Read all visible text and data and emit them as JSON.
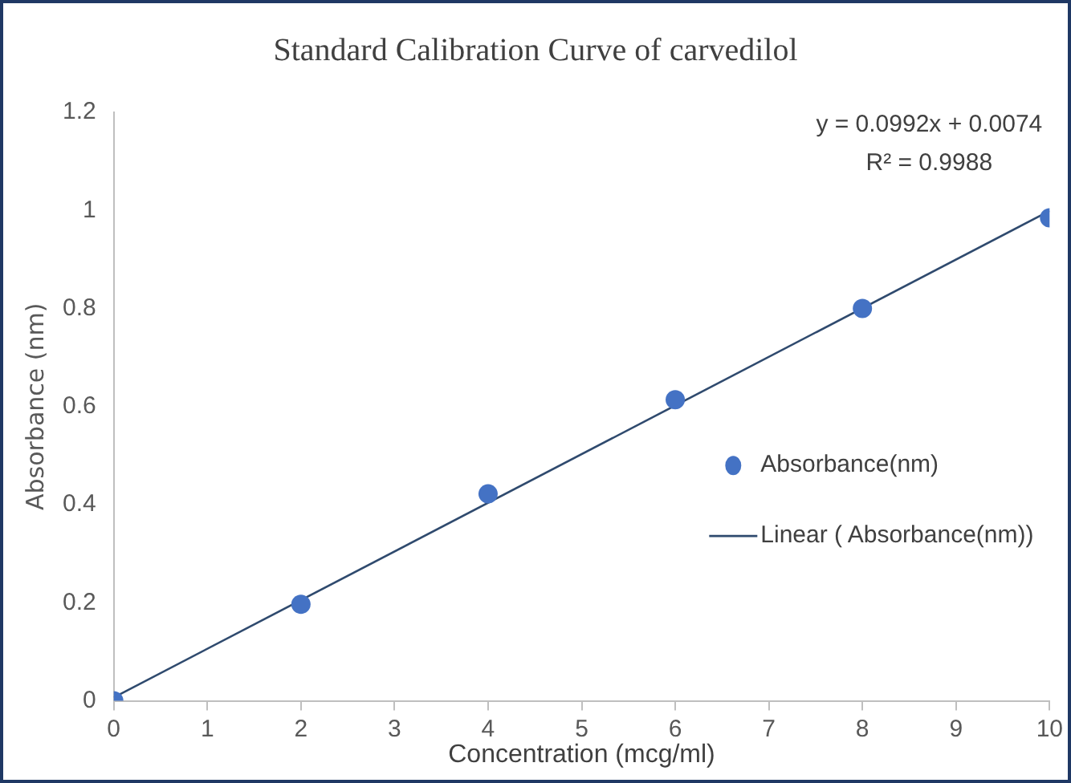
{
  "chart_data": {
    "type": "scatter",
    "title": "Standard Calibration Curve of carvedilol",
    "xlabel": "Concentration (mcg/ml)",
    "ylabel": "Absorbance (nm)",
    "x": [
      0,
      2,
      4,
      6,
      8,
      10
    ],
    "series": [
      {
        "name": "Absorbance(nm)",
        "color": "#4472c4",
        "values": [
          0,
          0.197,
          0.422,
          0.614,
          0.8,
          0.985
        ],
        "marker": "circle"
      },
      {
        "name": "Linear ( Absorbance(nm))",
        "type": "line",
        "color": "#2f4a6e",
        "x": [
          0,
          10
        ],
        "values": [
          0.007,
          0.999
        ],
        "marker": "none",
        "line_style": "solid"
      }
    ],
    "xlim": [
      0,
      10
    ],
    "xticks": [
      0,
      1,
      2,
      3,
      4,
      5,
      6,
      7,
      8,
      9,
      10
    ],
    "ylim": [
      0,
      1.2
    ],
    "yticks": [
      0,
      0.2,
      0.4,
      0.6,
      0.8,
      1,
      1.2
    ],
    "grid": false,
    "legend": "right",
    "annotations": [
      "y = 0.0992x + 0.0074",
      "R² = 0.9988"
    ]
  }
}
